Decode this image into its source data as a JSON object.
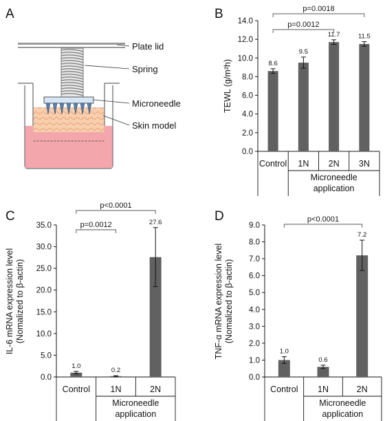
{
  "colors": {
    "bar": "#616161",
    "axis": "#111111",
    "skin": "#f6c49a",
    "medium": "#f3a7ac",
    "needle_plate": "#d6e6f4"
  },
  "panel_labels": [
    "A",
    "B",
    "C",
    "D"
  ],
  "schematic": {
    "labels": [
      "Plate lid",
      "Spring",
      "Microneedle",
      "Skin model"
    ]
  },
  "chart_data": [
    {
      "type": "bar",
      "panel": "B",
      "categories": [
        "Control",
        "1N",
        "2N",
        "3N"
      ],
      "group_label": "Microneedle application",
      "values": [
        8.6,
        9.5,
        11.7,
        11.5
      ],
      "errors": [
        0.25,
        0.6,
        0.25,
        0.25
      ],
      "data_labels": [
        "8.6",
        "9.5",
        "11.7",
        "11.5"
      ],
      "ylabel": "TEWL (g/m²h)",
      "ylim": [
        0,
        14
      ],
      "yticks": [
        "0.0",
        "2.0",
        "4.0",
        "6.0",
        "8.0",
        "10.0",
        "12.0",
        "14.0"
      ],
      "annotations": [
        {
          "text": "p=0.0012",
          "from": "Control",
          "to": "2N"
        },
        {
          "text": "p=0.0018",
          "from": "Control",
          "to": "3N"
        }
      ]
    },
    {
      "type": "bar",
      "panel": "C",
      "categories": [
        "Control",
        "1N",
        "2N"
      ],
      "group_label": "Microneedle application",
      "values": [
        1.0,
        0.2,
        27.6
      ],
      "errors": [
        0.3,
        0.1,
        6.8
      ],
      "data_labels": [
        "1.0",
        "0.2",
        "27.6"
      ],
      "ylabel": "IL-6 mRNA expression level",
      "ylabel2": "(Nomalized to β-actin)",
      "ylim": [
        0,
        35
      ],
      "yticks": [
        "0.0",
        "5.0",
        "10.0",
        "15.0",
        "20.0",
        "25.0",
        "30.0",
        "35.0"
      ],
      "annotations": [
        {
          "text": "p=0.0012",
          "from": "Control",
          "to": "1N"
        },
        {
          "text": "p<0.0001",
          "from": "Control",
          "to": "2N"
        }
      ]
    },
    {
      "type": "bar",
      "panel": "D",
      "categories": [
        "Control",
        "1N",
        "2N"
      ],
      "group_label": "Microneedle application",
      "values": [
        1.0,
        0.6,
        7.2
      ],
      "errors": [
        0.2,
        0.1,
        0.9
      ],
      "data_labels": [
        "1.0",
        "0.6",
        "7.2"
      ],
      "ylabel": "TNF-α mRNA expression level",
      "ylabel2": "(Nomalized to β-actin)",
      "ylim": [
        0,
        9
      ],
      "yticks": [
        "0.0",
        "1.0",
        "2.0",
        "3.0",
        "4.0",
        "5.0",
        "6.0",
        "7.0",
        "8.0",
        "9.0"
      ],
      "annotations": [
        {
          "text": "p<0.0001",
          "from": "Control",
          "to": "2N"
        }
      ]
    }
  ]
}
